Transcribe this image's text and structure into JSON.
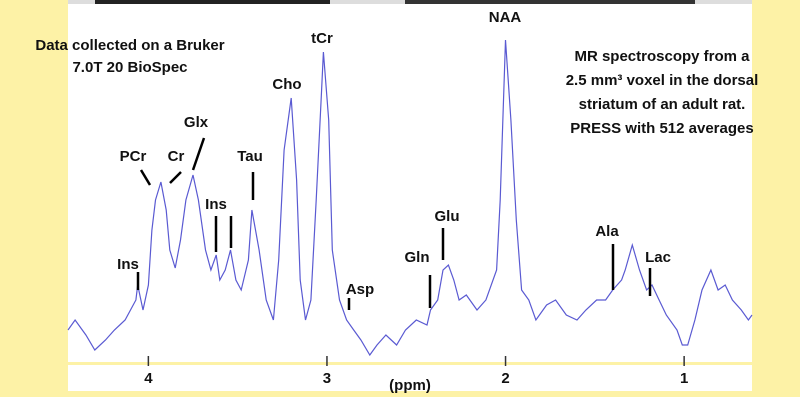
{
  "chart_data": {
    "type": "line",
    "xlabel": "(ppm)",
    "xlim": [
      4.45,
      0.62
    ],
    "xticks": [
      4,
      3,
      2,
      1
    ],
    "ylim": [
      0,
      362
    ],
    "x": [
      4.45,
      4.41,
      4.35,
      4.3,
      4.24,
      4.19,
      4.13,
      4.07,
      4.06,
      4.03,
      4.0,
      3.98,
      3.96,
      3.93,
      3.9,
      3.88,
      3.85,
      3.82,
      3.79,
      3.75,
      3.72,
      3.68,
      3.65,
      3.62,
      3.6,
      3.57,
      3.54,
      3.51,
      3.48,
      3.44,
      3.42,
      3.38,
      3.34,
      3.3,
      3.27,
      3.24,
      3.2,
      3.17,
      3.15,
      3.12,
      3.09,
      3.06,
      3.03,
      3.02,
      2.99,
      2.97,
      2.93,
      2.89,
      2.85,
      2.81,
      2.76,
      2.72,
      2.67,
      2.61,
      2.56,
      2.5,
      2.44,
      2.42,
      2.38,
      2.35,
      2.32,
      2.29,
      2.26,
      2.22,
      2.16,
      2.11,
      2.05,
      2.03,
      2.0,
      1.97,
      1.94,
      1.91,
      1.87,
      1.83,
      1.77,
      1.72,
      1.66,
      1.6,
      1.55,
      1.49,
      1.44,
      1.4,
      1.35,
      1.33,
      1.29,
      1.25,
      1.21,
      1.18,
      1.14,
      1.1,
      1.04,
      1.01,
      0.98,
      0.94,
      0.9,
      0.85,
      0.81,
      0.77,
      0.73,
      0.68,
      0.64,
      0.62
    ],
    "series": [
      {
        "color": "#5a5ad2",
        "values": [
          32,
          42,
          27,
          12,
          22,
          32,
          42,
          62,
          77,
          52,
          77,
          132,
          162,
          180,
          152,
          112,
          94,
          122,
          162,
          187,
          162,
          112,
          92,
          107,
          82,
          92,
          112,
          82,
          72,
          102,
          152,
          112,
          62,
          42,
          102,
          212,
          264,
          182,
          82,
          42,
          62,
          162,
          272,
          310,
          242,
          112,
          62,
          42,
          32,
          22,
          7,
          17,
          27,
          17,
          32,
          42,
          37,
          52,
          62,
          92,
          97,
          82,
          62,
          67,
          52,
          62,
          92,
          162,
          322,
          242,
          142,
          72,
          62,
          42,
          57,
          62,
          47,
          42,
          52,
          62,
          62,
          72,
          82,
          92,
          117,
          92,
          72,
          77,
          62,
          47,
          32,
          17,
          17,
          42,
          72,
          92,
          72,
          77,
          62,
          52,
          42,
          47
        ]
      }
    ],
    "annotations": [
      "Ins",
      "PCr",
      "Cr",
      "Glx",
      "Ins",
      "Tau",
      "Cho",
      "tCr",
      "Asp",
      "Gln",
      "Glu",
      "NAA",
      "Ala",
      "Lac"
    ],
    "note_left": [
      "Data collected on a Bruker",
      "7.0T 20 BioSpec"
    ],
    "note_right": [
      "MR spectroscopy from a",
      "2.5 mm³ voxel in the dorsal",
      "striatum of an adult rat.",
      "PRESS with 512 averages"
    ]
  }
}
